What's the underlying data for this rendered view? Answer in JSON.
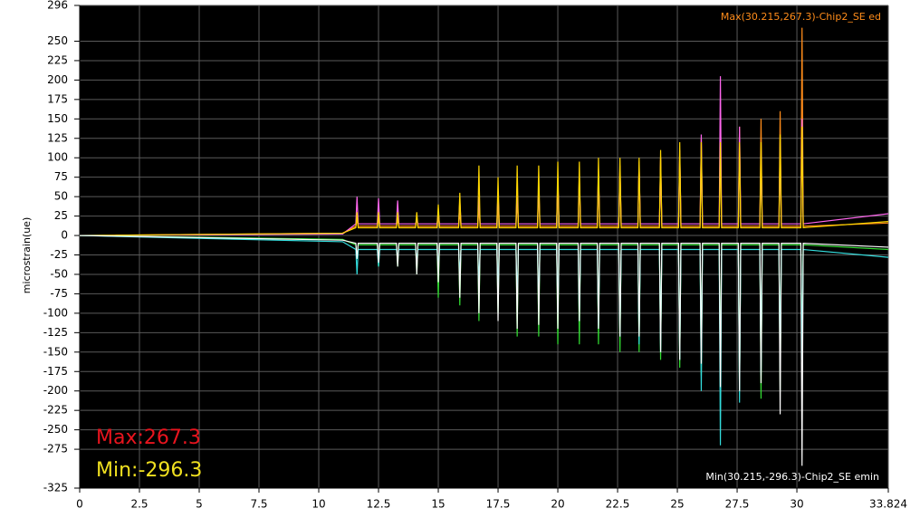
{
  "chart_data": {
    "type": "line",
    "y_label": "microstrain(ue)",
    "annotations": {
      "max_series": "Max(30.215,267.3)-Chip2_SE ed",
      "min_series": "Min(30.215,-296.3)-Chip2_SE emin",
      "max": "Max:267.3",
      "min": "Min:-296.3"
    },
    "background": "#000000",
    "grid": true,
    "grid_color": "#5a5a5a",
    "xlim": [
      0,
      33.824
    ],
    "xticks": [
      0,
      2.5,
      5,
      7.5,
      10,
      12.5,
      15,
      17.5,
      20,
      22.5,
      25,
      27.5,
      30,
      33.824
    ],
    "ylim": [
      -325,
      296
    ],
    "yticks": [
      296,
      250,
      225,
      200,
      175,
      150,
      125,
      100,
      75,
      50,
      25,
      0,
      -25,
      -50,
      -75,
      -100,
      -125,
      -150,
      -175,
      -200,
      -225,
      -250,
      -275,
      -325
    ],
    "x": [
      0,
      11,
      11.55,
      11.6,
      11.65,
      12.45,
      12.5,
      12.55,
      13.25,
      13.3,
      13.35,
      14.05,
      14.1,
      14.15,
      14.95,
      15,
      15.05,
      15.85,
      15.9,
      15.95,
      16.65,
      16.7,
      16.75,
      17.45,
      17.5,
      17.55,
      18.25,
      18.3,
      18.35,
      19.15,
      19.2,
      19.25,
      19.95,
      20,
      20.05,
      20.85,
      20.9,
      20.95,
      21.65,
      21.7,
      21.75,
      22.55,
      22.6,
      22.65,
      23.35,
      23.4,
      23.45,
      24.25,
      24.3,
      24.35,
      25.05,
      25.1,
      25.15,
      25.95,
      26,
      26.05,
      26.75,
      26.8,
      26.85,
      27.55,
      27.6,
      27.65,
      28.45,
      28.5,
      28.55,
      29.25,
      29.3,
      29.35,
      30.165,
      30.215,
      30.265,
      33.824
    ],
    "series": [
      {
        "color": "#ff8c1a",
        "values": [
          0,
          3,
          12,
          20,
          12,
          12,
          22,
          12,
          12,
          20,
          12,
          12,
          22,
          12,
          12,
          25,
          12,
          12,
          30,
          12,
          12,
          35,
          12,
          12,
          40,
          12,
          12,
          45,
          12,
          12,
          60,
          12,
          12,
          75,
          12,
          12,
          80,
          12,
          12,
          85,
          12,
          12,
          90,
          12,
          12,
          95,
          12,
          12,
          100,
          12,
          12,
          105,
          12,
          12,
          125,
          12,
          12,
          135,
          12,
          12,
          140,
          12,
          12,
          150,
          12,
          12,
          160,
          12,
          12,
          267.3,
          12,
          16
        ]
      },
      {
        "color": "#ff66ee",
        "values": [
          0,
          2,
          15,
          50,
          15,
          15,
          48,
          15,
          15,
          45,
          15,
          15,
          20,
          15,
          15,
          30,
          15,
          15,
          45,
          15,
          15,
          50,
          15,
          15,
          55,
          15,
          15,
          60,
          15,
          15,
          65,
          15,
          15,
          70,
          15,
          15,
          75,
          15,
          15,
          80,
          15,
          15,
          85,
          15,
          15,
          90,
          15,
          15,
          100,
          15,
          15,
          110,
          15,
          15,
          130,
          15,
          15,
          205,
          15,
          15,
          140,
          15,
          15,
          110,
          15,
          15,
          120,
          15,
          15,
          150,
          15,
          28
        ]
      },
      {
        "color": "#ffd700",
        "values": [
          0,
          3,
          10,
          30,
          10,
          10,
          30,
          10,
          10,
          30,
          10,
          10,
          30,
          10,
          10,
          40,
          10,
          10,
          55,
          10,
          10,
          90,
          10,
          10,
          75,
          10,
          10,
          90,
          10,
          10,
          90,
          10,
          10,
          95,
          10,
          10,
          95,
          10,
          10,
          100,
          10,
          10,
          100,
          10,
          10,
          100,
          10,
          10,
          110,
          10,
          10,
          120,
          10,
          10,
          120,
          10,
          10,
          120,
          10,
          10,
          120,
          10,
          10,
          120,
          10,
          10,
          130,
          10,
          10,
          140,
          10,
          18
        ]
      },
      {
        "color": "#33dd33",
        "values": [
          0,
          -5,
          -12,
          -30,
          -12,
          -12,
          -40,
          -12,
          -12,
          -40,
          -12,
          -12,
          -50,
          -12,
          -12,
          -80,
          -12,
          -12,
          -90,
          -12,
          -12,
          -110,
          -12,
          -12,
          -100,
          -12,
          -12,
          -130,
          -12,
          -12,
          -130,
          -12,
          -12,
          -140,
          -12,
          -12,
          -140,
          -12,
          -12,
          -140,
          -12,
          -12,
          -150,
          -12,
          -12,
          -150,
          -12,
          -12,
          -160,
          -12,
          -12,
          -170,
          -12,
          -12,
          -180,
          -12,
          -12,
          -190,
          -12,
          -12,
          -200,
          -12,
          -12,
          -210,
          -12,
          -12,
          -200,
          -12,
          -12,
          -160,
          -12,
          -18
        ]
      },
      {
        "color": "#33dddd",
        "values": [
          0,
          -8,
          -18,
          -50,
          -18,
          -18,
          -40,
          -18,
          -18,
          -30,
          -18,
          -18,
          -30,
          -18,
          -18,
          -40,
          -18,
          -18,
          -50,
          -18,
          -18,
          -60,
          -18,
          -18,
          -70,
          -18,
          -18,
          -80,
          -18,
          -18,
          -90,
          -18,
          -18,
          -100,
          -18,
          -18,
          -110,
          -18,
          -18,
          -120,
          -18,
          -18,
          -130,
          -18,
          -18,
          -140,
          -18,
          -18,
          -150,
          -18,
          -18,
          -160,
          -18,
          -18,
          -200,
          -18,
          -18,
          -270,
          -18,
          -18,
          -215,
          -18,
          -18,
          -180,
          -18,
          -18,
          -175,
          -18,
          -18,
          -160,
          -18,
          -28
        ]
      },
      {
        "color": "#ffffff",
        "values": [
          0,
          -6,
          -10,
          -30,
          -10,
          -10,
          -35,
          -10,
          -10,
          -40,
          -10,
          -10,
          -50,
          -10,
          -10,
          -60,
          -10,
          -10,
          -80,
          -10,
          -10,
          -100,
          -10,
          -10,
          -110,
          -10,
          -10,
          -120,
          -10,
          -10,
          -115,
          -10,
          -10,
          -120,
          -10,
          -10,
          -110,
          -10,
          -10,
          -120,
          -10,
          -10,
          -130,
          -10,
          -10,
          -130,
          -10,
          -10,
          -150,
          -10,
          -10,
          -160,
          -10,
          -10,
          -165,
          -10,
          -10,
          -195,
          -10,
          -10,
          -200,
          -10,
          -10,
          -190,
          -10,
          -10,
          -230,
          -10,
          -10,
          -296.3,
          -10,
          -15
        ]
      }
    ]
  }
}
